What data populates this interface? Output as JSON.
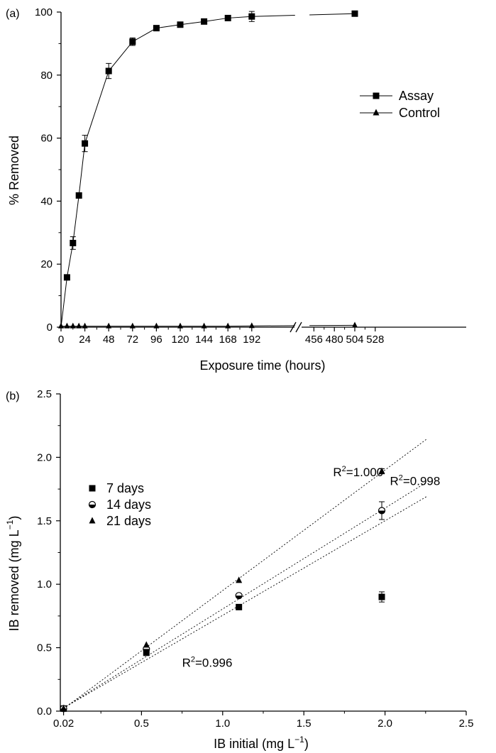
{
  "chart_data": [
    {
      "panel_label": "(a)",
      "type": "line",
      "xlabel": "Exposure time (hours)",
      "ylabel": "% Removed",
      "ylim": [
        0,
        100
      ],
      "x_axis_break": [
        204,
        444
      ],
      "x_ticks": [
        0,
        24,
        48,
        72,
        96,
        120,
        144,
        168,
        192,
        456,
        480,
        504,
        528
      ],
      "y_ticks": [
        0,
        20,
        40,
        60,
        80,
        100
      ],
      "legend_position": "right-middle",
      "series": [
        {
          "name": "Assay",
          "marker": "square",
          "x": [
            0,
            6,
            12,
            18,
            24,
            48,
            72,
            96,
            120,
            144,
            168,
            192,
            504
          ],
          "values": [
            0,
            15.8,
            26.7,
            41.8,
            58.3,
            81.3,
            90.6,
            94.9,
            96.0,
            97.0,
            98.1,
            98.6,
            99.5
          ],
          "errors": [
            0,
            0.6,
            2.0,
            0.8,
            2.6,
            2.4,
            1.2,
            0.6,
            0.5,
            0.5,
            0.6,
            1.6,
            0.6
          ]
        },
        {
          "name": "Control",
          "marker": "triangle",
          "x": [
            0,
            6,
            12,
            18,
            24,
            48,
            72,
            96,
            120,
            144,
            168,
            192,
            504
          ],
          "values": [
            0.3,
            0.3,
            0.3,
            0.3,
            0.3,
            0.3,
            0.3,
            0.3,
            0.3,
            0.3,
            0.3,
            0.4,
            0.6
          ],
          "errors": []
        }
      ]
    },
    {
      "panel_label": "(b)",
      "type": "scatter",
      "xlabel_main": "IB initial (mg L",
      "xlabel_sup": "−1",
      "xlabel_end": ")",
      "ylabel_main": "IB removed (mg L",
      "ylabel_sup": "−1",
      "ylabel_end": ")",
      "xlim": [
        0,
        2.5
      ],
      "ylim": [
        0,
        2.5
      ],
      "x_tick_labels": [
        "0.02",
        "0.5",
        "1.0",
        "1.5",
        "2.0",
        "2.5"
      ],
      "x_tick_values": [
        0.02,
        0.5,
        1.0,
        1.5,
        2.0,
        2.5
      ],
      "y_tick_labels": [
        "0.0",
        "0.5",
        "1.0",
        "1.5",
        "2.0",
        "2.5"
      ],
      "y_tick_values": [
        0.0,
        0.5,
        1.0,
        1.5,
        2.0,
        2.5
      ],
      "legend_position": "left-middle",
      "series": [
        {
          "name": "7 days",
          "marker": "square",
          "x": [
            0.02,
            0.53,
            1.1,
            1.98
          ],
          "values": [
            0.02,
            0.46,
            0.82,
            0.9
          ],
          "errors": [
            0,
            0,
            0,
            0.04
          ]
        },
        {
          "name": "14 days",
          "marker": "circle-half",
          "x": [
            0.02,
            0.53,
            1.1,
            1.98
          ],
          "values": [
            0.02,
            0.49,
            0.91,
            1.58
          ],
          "errors": [
            0,
            0,
            0,
            0.07
          ]
        },
        {
          "name": "21 days",
          "marker": "triangle",
          "x": [
            0.02,
            0.53,
            1.1,
            1.98
          ],
          "values": [
            0.02,
            0.52,
            1.03,
            1.89
          ],
          "errors": [
            0,
            0,
            0,
            0.02
          ]
        }
      ],
      "fit_lines": [
        {
          "name": "21 days",
          "slope": 0.95,
          "intercept": 0.0,
          "x_end": 2.26,
          "r2_prefix": "R",
          "r2_sup": "2",
          "r2_value": "=1.000",
          "label_anchor": [
            1.68,
            1.85
          ]
        },
        {
          "name": "14 days",
          "slope": 0.795,
          "intercept": 0.01,
          "x_end": 2.26,
          "r2_prefix": "R",
          "r2_sup": "2",
          "r2_value": "=0.998",
          "label_anchor": [
            2.03,
            1.78
          ]
        },
        {
          "name": "7 days",
          "slope": 0.745,
          "intercept": 0.01,
          "x_end": 2.26,
          "r2_prefix": "R",
          "r2_sup": "2",
          "r2_value": "=0.996",
          "label_anchor": [
            0.75,
            0.35
          ]
        }
      ]
    }
  ]
}
